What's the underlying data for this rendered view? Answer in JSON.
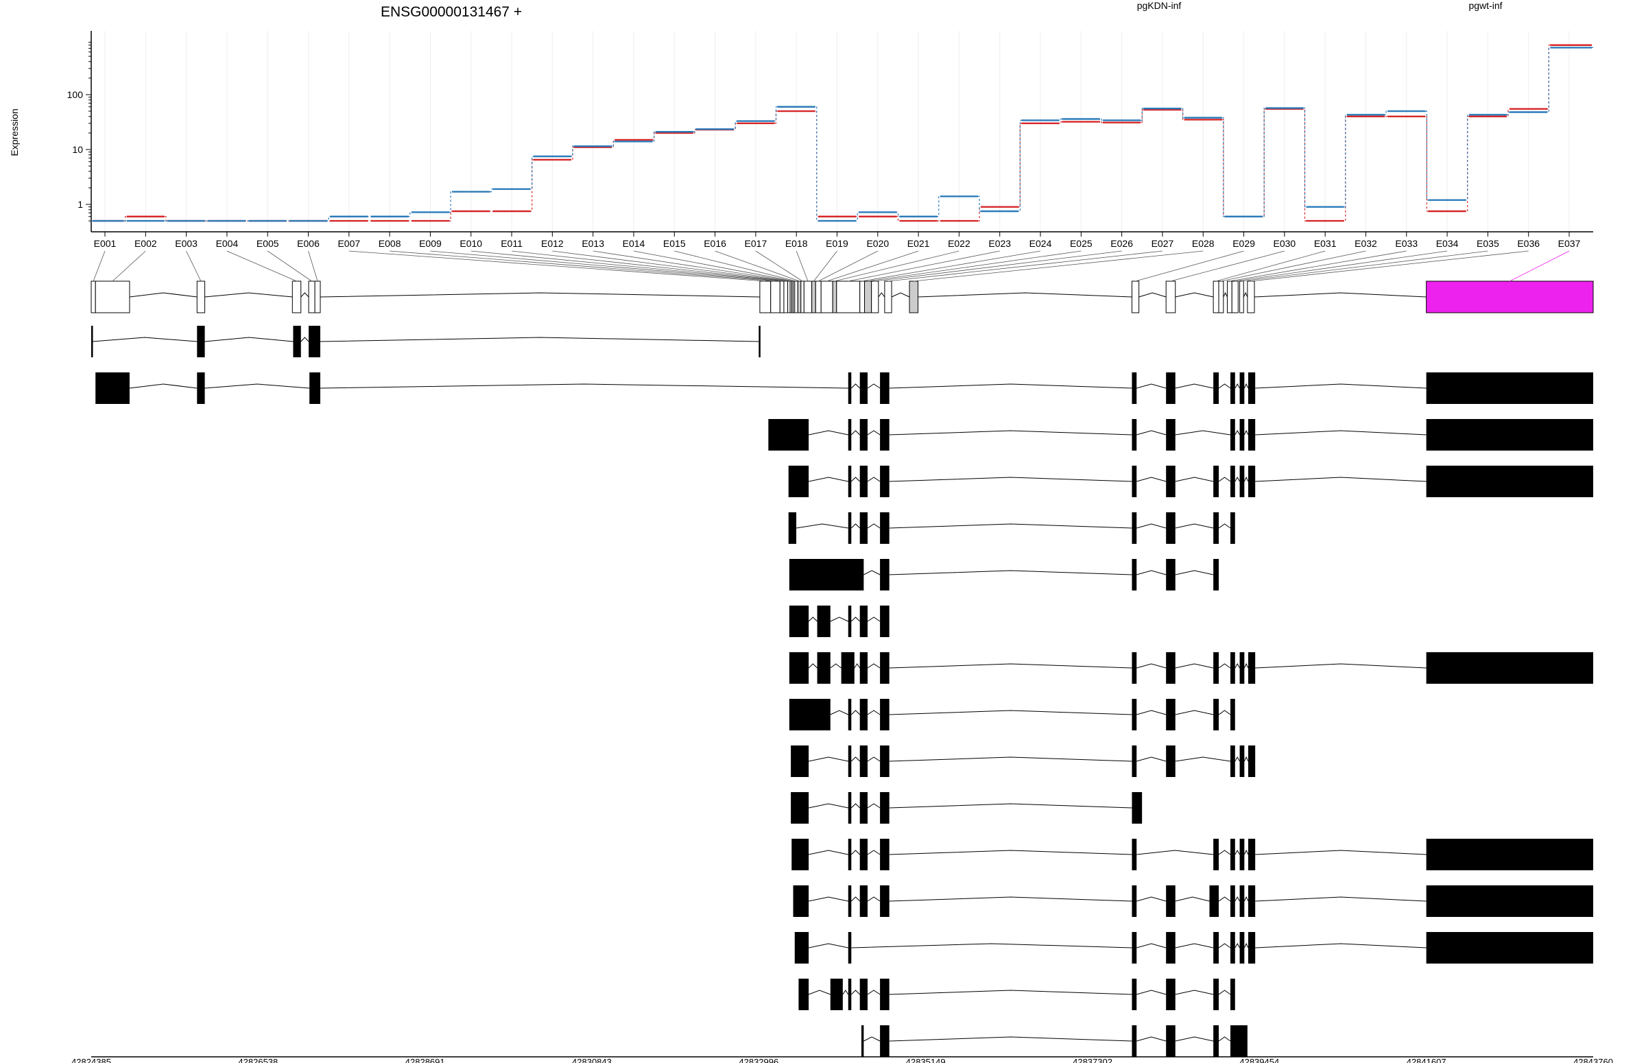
{
  "chart_data": {
    "type": "line",
    "title": "ENSG00000131467 +",
    "ylabel": "Expression",
    "xlabel": "",
    "y_scale": "log",
    "y_ticks": [
      "1",
      "10",
      "100"
    ],
    "y_tick_values": [
      1,
      10,
      100
    ],
    "ylim": [
      0.5,
      900
    ],
    "grid": true,
    "legend_position": "top",
    "categories": [
      "E001",
      "E002",
      "E003",
      "E004",
      "E005",
      "E006",
      "E007",
      "E008",
      "E009",
      "E010",
      "E011",
      "E012",
      "E013",
      "E014",
      "E015",
      "E016",
      "E017",
      "E018",
      "E019",
      "E020",
      "E021",
      "E022",
      "E023",
      "E024",
      "E025",
      "E026",
      "E027",
      "E028",
      "E029",
      "E030",
      "E031",
      "E032",
      "E033",
      "E034",
      "E035",
      "E036",
      "E037"
    ],
    "series": [
      {
        "name": "pgKDN-inf",
        "color": "#d62728",
        "values": [
          0.5,
          0.6,
          0.5,
          0.5,
          0.5,
          0.5,
          0.5,
          0.5,
          0.5,
          0.75,
          0.75,
          6.5,
          11,
          15,
          20,
          23,
          30,
          50,
          0.6,
          0.6,
          0.5,
          0.5,
          0.9,
          30,
          32,
          31,
          53,
          35,
          0.6,
          55,
          0.5,
          40,
          40,
          0.75,
          40,
          55,
          800
        ]
      },
      {
        "name": "pgwt-inf",
        "color": "#2b7bba",
        "values": [
          0.5,
          0.5,
          0.5,
          0.5,
          0.5,
          0.5,
          0.6,
          0.6,
          0.72,
          1.7,
          1.9,
          7.5,
          11.5,
          14,
          21,
          23.5,
          33,
          60,
          0.5,
          0.72,
          0.6,
          1.4,
          0.75,
          34,
          36,
          34,
          56,
          38,
          0.6,
          57,
          0.9,
          43,
          50,
          1.2,
          43,
          48,
          720
        ]
      }
    ],
    "genomic_axis": {
      "ticks": [
        "42824385",
        "42826538",
        "42828691",
        "42830843",
        "42832996",
        "42835149",
        "42837302",
        "42839454",
        "42841607",
        "42843760"
      ],
      "tick_values": [
        42824385,
        42826538,
        42828691,
        42830843,
        42832996,
        42835149,
        42837302,
        42839454,
        42841607,
        42843760
      ],
      "range": [
        42824385,
        42843760
      ]
    },
    "exon_bins": [
      {
        "id": "E001",
        "start": 42824385,
        "end": 42824440
      },
      {
        "id": "E002",
        "start": 42824440,
        "end": 42824880
      },
      {
        "id": "E003",
        "start": 42825750,
        "end": 42825850
      },
      {
        "id": "E004",
        "start": 42826980,
        "end": 42827090
      },
      {
        "id": "E005",
        "start": 42827190,
        "end": 42827270
      },
      {
        "id": "E006",
        "start": 42827270,
        "end": 42827340
      },
      {
        "id": "E007",
        "start": 42833010,
        "end": 42833150
      },
      {
        "id": "E008",
        "start": 42833150,
        "end": 42833270
      },
      {
        "id": "E009",
        "start": 42833270,
        "end": 42833320
      },
      {
        "id": "E010",
        "start": 42833320,
        "end": 42833370
      },
      {
        "id": "E011",
        "start": 42833370,
        "end": 42833400
      },
      {
        "id": "E012",
        "start": 42833400,
        "end": 42833420
      },
      {
        "id": "E013",
        "start": 42833420,
        "end": 42833440
      },
      {
        "id": "E014",
        "start": 42833440,
        "end": 42833460
      },
      {
        "id": "E015",
        "start": 42833460,
        "end": 42833500
      },
      {
        "id": "E016",
        "start": 42833500,
        "end": 42833540
      },
      {
        "id": "E017",
        "start": 42833540,
        "end": 42833580
      },
      {
        "id": "E018",
        "start": 42833580,
        "end": 42833680
      },
      {
        "id": "E019",
        "start": 42833680,
        "end": 42833730
      },
      {
        "id": "E020",
        "start": 42833730,
        "end": 42833800
      },
      {
        "id": "E021",
        "start": 42833800,
        "end": 42833950
      },
      {
        "id": "E022",
        "start": 42833950,
        "end": 42834000
      },
      {
        "id": "E023",
        "start": 42834000,
        "end": 42834300
      },
      {
        "id": "E024",
        "start": 42834300,
        "end": 42834360
      },
      {
        "id": "E025",
        "start": 42834360,
        "end": 42834450
      },
      {
        "id": "E026",
        "start": 42834450,
        "end": 42834540
      },
      {
        "id": "E027",
        "start": 42834620,
        "end": 42834710
      },
      {
        "id": "E028",
        "start": 42834940,
        "end": 42835050
      },
      {
        "id": "E029",
        "start": 42837810,
        "end": 42837900
      },
      {
        "id": "E030",
        "start": 42838250,
        "end": 42838370
      },
      {
        "id": "E031",
        "start": 42838860,
        "end": 42838930
      },
      {
        "id": "E032",
        "start": 42838930,
        "end": 42838990
      },
      {
        "id": "E033",
        "start": 42839040,
        "end": 42839100
      },
      {
        "id": "E034",
        "start": 42839100,
        "end": 42839180
      },
      {
        "id": "E035",
        "start": 42839200,
        "end": 42839250
      },
      {
        "id": "E036",
        "start": 42839300,
        "end": 42839390
      },
      {
        "id": "E037",
        "start": 42841607,
        "end": 42843760
      }
    ],
    "highlight_bin": {
      "id": "E037",
      "color": "#ee22ee"
    },
    "transcripts": [
      [
        [
          42824385,
          42824400
        ],
        [
          42825750,
          42825850
        ],
        [
          42826990,
          42827090
        ],
        [
          42827190,
          42827340
        ],
        [
          42832996,
          42833010
        ]
      ],
      [
        [
          42824440,
          42824880
        ],
        [
          42825750,
          42825850
        ],
        [
          42827200,
          42827340
        ],
        [
          42834150,
          42834190
        ],
        [
          42834300,
          42834400
        ],
        [
          42834560,
          42834680
        ],
        [
          42837810,
          42837870
        ],
        [
          42838250,
          42838370
        ],
        [
          42838860,
          42838930
        ],
        [
          42839080,
          42839140
        ],
        [
          42839200,
          42839260
        ],
        [
          42839310,
          42839400
        ],
        [
          42841607,
          42843760
        ]
      ],
      [
        [
          42833120,
          42833640
        ],
        [
          42834150,
          42834190
        ],
        [
          42834300,
          42834400
        ],
        [
          42834560,
          42834680
        ],
        [
          42837810,
          42837870
        ],
        [
          42838250,
          42838370
        ],
        [
          42839080,
          42839140
        ],
        [
          42839200,
          42839260
        ],
        [
          42839310,
          42839400
        ],
        [
          42841607,
          42843760
        ]
      ],
      [
        [
          42833380,
          42833640
        ],
        [
          42834150,
          42834190
        ],
        [
          42834300,
          42834400
        ],
        [
          42834560,
          42834680
        ],
        [
          42837810,
          42837870
        ],
        [
          42838250,
          42838370
        ],
        [
          42838860,
          42838930
        ],
        [
          42839080,
          42839140
        ],
        [
          42839200,
          42839260
        ],
        [
          42839310,
          42839400
        ],
        [
          42841607,
          42843760
        ]
      ],
      [
        [
          42833380,
          42833480
        ],
        [
          42834150,
          42834190
        ],
        [
          42834300,
          42834400
        ],
        [
          42834560,
          42834680
        ],
        [
          42837810,
          42837870
        ],
        [
          42838250,
          42838370
        ],
        [
          42838860,
          42838930
        ],
        [
          42839080,
          42839140
        ]
      ],
      [
        [
          42833390,
          42834350
        ],
        [
          42834560,
          42834680
        ],
        [
          42837810,
          42837870
        ],
        [
          42838250,
          42838370
        ],
        [
          42838860,
          42838930
        ]
      ],
      [
        [
          42833390,
          42833640
        ],
        [
          42833750,
          42833920
        ],
        [
          42834150,
          42834190
        ],
        [
          42834300,
          42834400
        ],
        [
          42834560,
          42834680
        ]
      ],
      [
        [
          42833390,
          42833640
        ],
        [
          42833750,
          42833920
        ],
        [
          42834060,
          42834230
        ],
        [
          42834300,
          42834400
        ],
        [
          42834560,
          42834680
        ],
        [
          42837810,
          42837870
        ],
        [
          42838250,
          42838370
        ],
        [
          42838860,
          42838930
        ],
        [
          42839080,
          42839140
        ],
        [
          42839200,
          42839260
        ],
        [
          42839310,
          42839400
        ],
        [
          42841607,
          42843760
        ]
      ],
      [
        [
          42833390,
          42833920
        ],
        [
          42834150,
          42834190
        ],
        [
          42834300,
          42834400
        ],
        [
          42834560,
          42834680
        ],
        [
          42837810,
          42837870
        ],
        [
          42838250,
          42838370
        ],
        [
          42838860,
          42838930
        ],
        [
          42839080,
          42839140
        ]
      ],
      [
        [
          42833410,
          42833640
        ],
        [
          42834150,
          42834190
        ],
        [
          42834300,
          42834400
        ],
        [
          42834560,
          42834680
        ],
        [
          42837810,
          42837870
        ],
        [
          42838250,
          42838370
        ],
        [
          42839080,
          42839140
        ],
        [
          42839200,
          42839260
        ],
        [
          42839310,
          42839400
        ]
      ],
      [
        [
          42833410,
          42833640
        ],
        [
          42834150,
          42834190
        ],
        [
          42834300,
          42834400
        ],
        [
          42834560,
          42834680
        ],
        [
          42837810,
          42837940
        ]
      ],
      [
        [
          42833420,
          42833640
        ],
        [
          42834150,
          42834190
        ],
        [
          42834300,
          42834400
        ],
        [
          42834560,
          42834680
        ],
        [
          42837810,
          42837870
        ],
        [
          42838860,
          42838930
        ],
        [
          42839080,
          42839140
        ],
        [
          42839200,
          42839260
        ],
        [
          42839310,
          42839400
        ],
        [
          42841607,
          42843760
        ]
      ],
      [
        [
          42833440,
          42833640
        ],
        [
          42834150,
          42834190
        ],
        [
          42834300,
          42834400
        ],
        [
          42834560,
          42834680
        ],
        [
          42837810,
          42837870
        ],
        [
          42838250,
          42838370
        ],
        [
          42838810,
          42838930
        ],
        [
          42839080,
          42839140
        ],
        [
          42839200,
          42839260
        ],
        [
          42839310,
          42839400
        ],
        [
          42841607,
          42843760
        ]
      ],
      [
        [
          42833460,
          42833640
        ],
        [
          42834150,
          42834190
        ],
        [
          42837810,
          42837870
        ],
        [
          42838250,
          42838370
        ],
        [
          42838860,
          42838930
        ],
        [
          42839080,
          42839140
        ],
        [
          42839200,
          42839260
        ],
        [
          42839310,
          42839400
        ],
        [
          42841607,
          42843760
        ]
      ],
      [
        [
          42833510,
          42833640
        ],
        [
          42833920,
          42834080
        ],
        [
          42834150,
          42834190
        ],
        [
          42834300,
          42834400
        ],
        [
          42834560,
          42834680
        ],
        [
          42837810,
          42837870
        ],
        [
          42838250,
          42838370
        ],
        [
          42838860,
          42838930
        ],
        [
          42839080,
          42839140
        ]
      ],
      [
        [
          42834320,
          42834350
        ],
        [
          42834560,
          42834680
        ],
        [
          42837810,
          42837870
        ],
        [
          42838250,
          42838370
        ],
        [
          42838860,
          42838930
        ],
        [
          42839080,
          42839300
        ]
      ]
    ]
  }
}
